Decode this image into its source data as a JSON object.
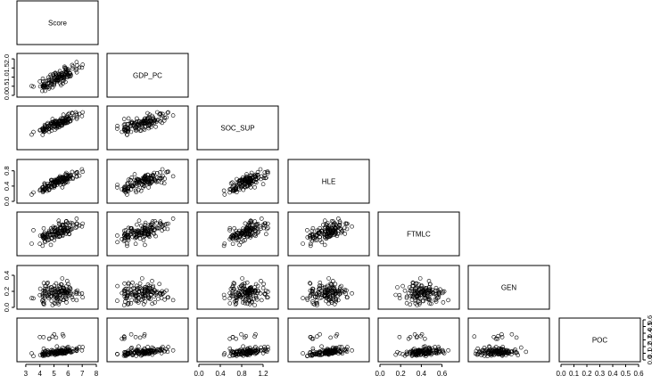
{
  "chart_data": {
    "type": "scatter",
    "layout": "lower-triangular pairs matrix",
    "variables": [
      "Score",
      "GDP_PC",
      "SOC_SUP",
      "HLE",
      "FTMLC",
      "GEN",
      "POC"
    ],
    "axes": {
      "Score": {
        "range": [
          2.5,
          8.0
        ],
        "ticks": [
          "3",
          "4",
          "5",
          "6",
          "7",
          "8"
        ],
        "ticks_side": "bottom"
      },
      "GDP_PC": {
        "range": [
          0.0,
          2.2
        ],
        "ticks": [
          "0.0",
          "0.5",
          "1.0",
          "1.5",
          "2.0"
        ],
        "ticks_side": "left"
      },
      "SOC_SUP": {
        "range": [
          0.0,
          1.45
        ],
        "ticks": [
          "0.0",
          "0.4",
          "0.8",
          "1.2"
        ],
        "ticks_side": "bottom"
      },
      "HLE": {
        "range": [
          0.0,
          1.05
        ],
        "ticks": [
          "0.0",
          "0.4",
          "0.8"
        ],
        "ticks_side": "left"
      },
      "FTMLC": {
        "range": [
          0.0,
          0.75
        ],
        "ticks": [
          "0.0",
          "0.2",
          "0.4",
          "0.6"
        ],
        "ticks_side": "bottom"
      },
      "GEN": {
        "range": [
          0.0,
          0.5
        ],
        "ticks": [
          "0.0",
          "0.2",
          "0.4"
        ],
        "ticks_side": "left"
      },
      "POC": {
        "range": [
          0.0,
          0.6
        ],
        "ticks": [
          "0.0",
          "0.1",
          "0.2",
          "0.3",
          "0.4",
          "0.5",
          "0.6"
        ],
        "ticks_side": "bottom,right"
      }
    },
    "point_count": 140,
    "marker": "open-circle"
  }
}
